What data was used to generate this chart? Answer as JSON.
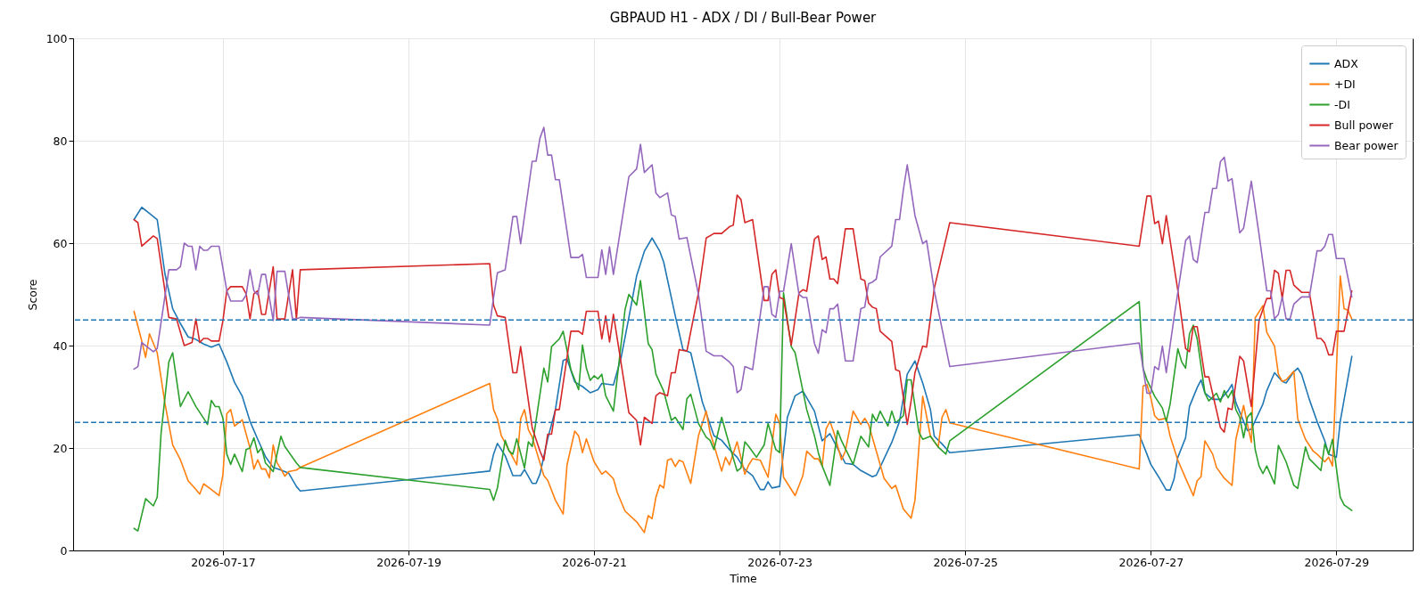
{
  "chart_data": {
    "type": "line",
    "title": "GBPAUD H1 - ADX / DI / Bull-Bear Power",
    "xlabel": "Time",
    "ylabel": "Score",
    "xlim": [
      "2026-07-15T09:15",
      "2026-07-29T19:45"
    ],
    "xticks": [
      "2026-07-17",
      "2026-07-19",
      "2026-07-21",
      "2026-07-23",
      "2026-07-25",
      "2026-07-27",
      "2026-07-29"
    ],
    "ylim": [
      0,
      100
    ],
    "yticks": [
      0,
      20,
      40,
      60,
      80,
      100
    ],
    "grid": true,
    "legend": "top right",
    "ref_lines": [
      {
        "axis": "y",
        "value": 45,
        "color": "#1f77b4",
        "line_style": "dashed"
      },
      {
        "axis": "y",
        "value": 25,
        "color": "#1f77b4",
        "line_style": "dashed"
      }
    ],
    "series": [
      {
        "name": "ADX",
        "color": "#1f77b4",
        "x": [
          "2026-07-16T01:00",
          "2026-07-16T03:00",
          "2026-07-16T05:00",
          "2026-07-16T07:00",
          "2026-07-16T09:00",
          "2026-07-16T11:00",
          "2026-07-16T13:00",
          "2026-07-16T15:00",
          "2026-07-16T17:00",
          "2026-07-16T19:00",
          "2026-07-16T21:00",
          "2026-07-16T23:00",
          "2026-07-17T01:00",
          "2026-07-17T03:00",
          "2026-07-17T05:00",
          "2026-07-17T07:00",
          "2026-07-17T09:00",
          "2026-07-17T11:00",
          "2026-07-17T13:00",
          "2026-07-17T15:00",
          "2026-07-17T17:00",
          "2026-07-17T19:00",
          "2026-07-17T20:00",
          "2026-07-19T21:00",
          "2026-07-19T22:00",
          "2026-07-19T23:00",
          "2026-07-20T01:00",
          "2026-07-20T03:00",
          "2026-07-20T05:00",
          "2026-07-20T06:00",
          "2026-07-20T08:00",
          "2026-07-20T09:00",
          "2026-07-20T10:00",
          "2026-07-20T12:00",
          "2026-07-20T14:00",
          "2026-07-20T16:00",
          "2026-07-20T17:00",
          "2026-07-20T19:00",
          "2026-07-20T21:00",
          "2026-07-20T23:00",
          "2026-07-21T01:00",
          "2026-07-21T02:00",
          "2026-07-21T05:00",
          "2026-07-21T07:00",
          "2026-07-21T09:00",
          "2026-07-21T11:00",
          "2026-07-21T13:00",
          "2026-07-21T15:00",
          "2026-07-21T17:00",
          "2026-07-21T18:00",
          "2026-07-21T21:00",
          "2026-07-21T23:00",
          "2026-07-22T01:00",
          "2026-07-22T04:00",
          "2026-07-22T07:00",
          "2026-07-22T09:00",
          "2026-07-22T11:00",
          "2026-07-22T13:00",
          "2026-07-22T15:00",
          "2026-07-22T17:00",
          "2026-07-22T19:00",
          "2026-07-22T20:00",
          "2026-07-22T21:00",
          "2026-07-22T22:00",
          "2026-07-23T00:00",
          "2026-07-23T02:00",
          "2026-07-23T04:00",
          "2026-07-23T06:00",
          "2026-07-23T09:00",
          "2026-07-23T11:00",
          "2026-07-23T13:00",
          "2026-07-23T15:00",
          "2026-07-23T17:00",
          "2026-07-23T19:00",
          "2026-07-23T21:00",
          "2026-07-24T00:00",
          "2026-07-24T01:00",
          "2026-07-24T03:00",
          "2026-07-24T05:00",
          "2026-07-24T07:00",
          "2026-07-24T09:00",
          "2026-07-24T11:00",
          "2026-07-24T13:00",
          "2026-07-24T15:00",
          "2026-07-24T16:00",
          "2026-07-24T18:00",
          "2026-07-24T20:00",
          "2026-07-26T21:00",
          "2026-07-26T23:00",
          "2026-07-27T00:00",
          "2026-07-27T02:00",
          "2026-07-27T04:00",
          "2026-07-27T05:00",
          "2026-07-27T06:00",
          "2026-07-27T07:00",
          "2026-07-27T09:00",
          "2026-07-27T10:00",
          "2026-07-27T12:00",
          "2026-07-27T13:00",
          "2026-07-27T14:00",
          "2026-07-27T16:00",
          "2026-07-27T18:00",
          "2026-07-27T20:00",
          "2026-07-27T21:00",
          "2026-07-27T22:00",
          "2026-07-28T00:00",
          "2026-07-28T01:00",
          "2026-07-28T02:00",
          "2026-07-28T05:00",
          "2026-07-28T06:00",
          "2026-07-28T08:00",
          "2026-07-28T10:00",
          "2026-07-28T11:00",
          "2026-07-28T13:00",
          "2026-07-28T14:00",
          "2026-07-28T15:00",
          "2026-07-28T17:00",
          "2026-07-28T19:00",
          "2026-07-28T21:00",
          "2026-07-28T22:00",
          "2026-07-29T00:00",
          "2026-07-29T01:00",
          "2026-07-29T04:00"
        ],
        "values": [
          64.6,
          67.0,
          65.8,
          64.6,
          54.0,
          47.2,
          44.3,
          41.7,
          41.2,
          40.3,
          39.7,
          40.3,
          36.8,
          32.8,
          30.1,
          25.2,
          21.7,
          18.3,
          16.2,
          15.7,
          15.1,
          12.5,
          11.6,
          15.5,
          18.8,
          20.9,
          18.5,
          14.6,
          14.6,
          15.8,
          13.1,
          13.1,
          14.9,
          21.8,
          27.5,
          37.1,
          37.4,
          32.9,
          32.0,
          30.8,
          31.4,
          32.6,
          32.3,
          37.7,
          45.5,
          53.6,
          58.4,
          61.0,
          58.4,
          56.3,
          45.8,
          39.2,
          38.6,
          29.0,
          22.4,
          21.5,
          19.7,
          18.2,
          15.8,
          14.6,
          11.9,
          11.9,
          13.4,
          12.2,
          12.5,
          26.0,
          30.2,
          31.1,
          27.2,
          21.4,
          22.8,
          19.9,
          17.0,
          16.8,
          15.6,
          14.4,
          14.7,
          17.9,
          21.1,
          25.2,
          34.4,
          37.0,
          32.7,
          27.5,
          22.3,
          20.8,
          19.1,
          22.6,
          18.8,
          16.8,
          14.4,
          11.8,
          11.8,
          13.9,
          18.2,
          22.0,
          28.1,
          31.8,
          33.3,
          30.7,
          29.5,
          29.5,
          31.2,
          32.4,
          28.9,
          25.2,
          23.4,
          23.7,
          28.6,
          31.2,
          34.7,
          33.0,
          32.7,
          34.9,
          35.6,
          34.4,
          29.5,
          25.2,
          21.4,
          18.8,
          18.2,
          25.2,
          37.9
        ]
      },
      {
        "name": "+DI",
        "color": "#ff7f0e",
        "x": [
          "2026-07-16T01:00",
          "2026-07-16T03:00",
          "2026-07-16T04:00",
          "2026-07-16T05:00",
          "2026-07-16T07:00",
          "2026-07-16T09:00",
          "2026-07-16T11:00",
          "2026-07-16T13:00",
          "2026-07-16T15:00",
          "2026-07-16T17:00",
          "2026-07-16T18:00",
          "2026-07-16T19:00",
          "2026-07-16T21:00",
          "2026-07-16T23:00",
          "2026-07-17T00:00",
          "2026-07-17T01:00",
          "2026-07-17T02:00",
          "2026-07-17T03:00",
          "2026-07-17T05:00",
          "2026-07-17T07:00",
          "2026-07-17T08:00",
          "2026-07-17T09:00",
          "2026-07-17T10:00",
          "2026-07-17T11:00",
          "2026-07-17T12:00",
          "2026-07-17T13:00",
          "2026-07-17T14:00",
          "2026-07-17T15:00",
          "2026-07-17T16:00",
          "2026-07-17T17:00",
          "2026-07-17T19:00",
          "2026-07-17T20:00",
          "2026-07-19T21:00",
          "2026-07-19T22:00",
          "2026-07-19T23:00",
          "2026-07-20T00:00",
          "2026-07-20T04:00",
          "2026-07-20T05:00",
          "2026-07-20T06:00",
          "2026-07-20T07:00",
          "2026-07-20T08:00",
          "2026-07-20T11:00",
          "2026-07-20T12:00",
          "2026-07-20T14:00",
          "2026-07-20T16:00",
          "2026-07-20T17:00",
          "2026-07-20T19:00",
          "2026-07-20T20:00",
          "2026-07-20T21:00",
          "2026-07-20T22:00",
          "2026-07-21T00:00",
          "2026-07-21T02:00",
          "2026-07-21T03:00",
          "2026-07-21T05:00",
          "2026-07-21T06:00",
          "2026-07-21T08:00",
          "2026-07-21T11:00",
          "2026-07-21T13:00",
          "2026-07-21T14:00",
          "2026-07-21T15:00",
          "2026-07-21T16:00",
          "2026-07-21T17:00",
          "2026-07-21T18:00",
          "2026-07-21T19:00",
          "2026-07-21T20:00",
          "2026-07-21T21:00",
          "2026-07-21T22:00",
          "2026-07-21T23:00",
          "2026-07-22T01:00",
          "2026-07-22T03:00",
          "2026-07-22T05:00",
          "2026-07-22T06:00",
          "2026-07-22T07:00",
          "2026-07-22T09:00",
          "2026-07-22T10:00",
          "2026-07-22T11:00",
          "2026-07-22T13:00",
          "2026-07-22T15:00",
          "2026-07-22T16:00",
          "2026-07-22T17:00",
          "2026-07-22T19:00",
          "2026-07-22T21:00",
          "2026-07-22T23:00",
          "2026-07-23T00:00",
          "2026-07-23T01:00",
          "2026-07-23T04:00",
          "2026-07-23T06:00",
          "2026-07-23T07:00",
          "2026-07-23T09:00",
          "2026-07-23T10:00",
          "2026-07-23T11:00",
          "2026-07-23T12:00",
          "2026-07-23T13:00",
          "2026-07-23T14:00",
          "2026-07-23T16:00",
          "2026-07-23T17:00",
          "2026-07-23T19:00",
          "2026-07-23T21:00",
          "2026-07-23T22:00",
          "2026-07-23T23:00",
          "2026-07-24T01:00",
          "2026-07-24T03:00",
          "2026-07-24T05:00",
          "2026-07-24T06:00",
          "2026-07-24T08:00",
          "2026-07-24T10:00",
          "2026-07-24T11:00",
          "2026-07-24T13:00",
          "2026-07-24T15:00",
          "2026-07-24T17:00",
          "2026-07-24T18:00",
          "2026-07-24T19:00",
          "2026-07-24T20:00",
          "2026-07-26T21:00",
          "2026-07-26T22:00",
          "2026-07-26T23:00",
          "2026-07-27T00:00",
          "2026-07-27T01:00",
          "2026-07-27T02:00",
          "2026-07-27T04:00",
          "2026-07-27T05:00",
          "2026-07-27T07:00",
          "2026-07-27T09:00",
          "2026-07-27T11:00",
          "2026-07-27T12:00",
          "2026-07-27T13:00",
          "2026-07-27T14:00",
          "2026-07-27T16:00",
          "2026-07-27T17:00",
          "2026-07-27T19:00",
          "2026-07-27T21:00",
          "2026-07-27T22:00",
          "2026-07-28T00:00",
          "2026-07-28T01:00",
          "2026-07-28T02:00",
          "2026-07-28T03:00",
          "2026-07-28T05:00",
          "2026-07-28T06:00",
          "2026-07-28T08:00",
          "2026-07-28T09:00",
          "2026-07-28T10:00",
          "2026-07-28T11:00",
          "2026-07-28T13:00",
          "2026-07-28T14:00",
          "2026-07-28T16:00",
          "2026-07-28T18:00",
          "2026-07-28T19:00",
          "2026-07-28T21:00",
          "2026-07-28T22:00",
          "2026-07-28T23:00",
          "2026-07-29T01:00",
          "2026-07-29T02:00",
          "2026-07-29T03:00",
          "2026-07-29T04:00"
        ],
        "values": [
          46.7,
          40.9,
          37.7,
          42.3,
          38.6,
          28.7,
          20.6,
          17.7,
          13.6,
          11.9,
          11.0,
          13.0,
          11.9,
          10.7,
          14.8,
          26.7,
          27.5,
          24.3,
          25.5,
          20.0,
          15.9,
          17.7,
          15.9,
          15.9,
          14.2,
          20.6,
          17.1,
          15.9,
          14.5,
          15.4,
          15.7,
          16.2,
          32.6,
          27.5,
          25.7,
          22.4,
          16.7,
          25.7,
          27.5,
          23.6,
          22.1,
          14.6,
          13.7,
          9.8,
          7.1,
          16.7,
          23.3,
          22.4,
          19.1,
          21.8,
          17.3,
          14.9,
          15.5,
          14.0,
          11.3,
          7.7,
          5.6,
          3.5,
          6.8,
          6.2,
          10.4,
          12.8,
          12.2,
          17.6,
          17.9,
          16.4,
          17.6,
          17.3,
          13.1,
          22.4,
          27.2,
          23.0,
          20.6,
          15.5,
          18.2,
          16.7,
          21.2,
          14.9,
          16.7,
          17.9,
          17.6,
          14.3,
          26.6,
          24.8,
          14.3,
          10.7,
          14.6,
          19.4,
          17.9,
          17.9,
          16.5,
          23.7,
          25.2,
          23.1,
          17.7,
          19.4,
          27.2,
          24.6,
          25.8,
          24.6,
          19.4,
          14.1,
          12.1,
          12.7,
          8.1,
          6.3,
          9.8,
          30.1,
          22.3,
          20.2,
          26.0,
          27.5,
          24.9,
          15.9,
          32.1,
          32.4,
          29.8,
          26.3,
          25.5,
          25.8,
          22.3,
          17.6,
          14.1,
          10.7,
          13.6,
          14.4,
          21.4,
          18.8,
          16.2,
          14.1,
          12.7,
          21.7,
          28.3,
          24.6,
          21.1,
          45.4,
          47.8,
          42.6,
          39.9,
          34.4,
          33.0,
          33.3,
          35.0,
          25.7,
          21.7,
          19.4,
          18.8,
          17.3,
          18.2,
          16.5,
          53.6,
          47.2,
          46.9,
          45.2
        ]
      },
      {
        "name": "-DI",
        "color": "#2ca02c",
        "x": [
          "2026-07-16T01:00",
          "2026-07-16T02:00",
          "2026-07-16T04:00",
          "2026-07-16T06:00",
          "2026-07-16T07:00",
          "2026-07-16T08:00",
          "2026-07-16T10:00",
          "2026-07-16T11:00",
          "2026-07-16T13:00",
          "2026-07-16T15:00",
          "2026-07-16T17:00",
          "2026-07-16T19:00",
          "2026-07-16T20:00",
          "2026-07-16T21:00",
          "2026-07-16T22:00",
          "2026-07-16T23:00",
          "2026-07-17T00:00",
          "2026-07-17T01:00",
          "2026-07-17T02:00",
          "2026-07-17T03:00",
          "2026-07-17T05:00",
          "2026-07-17T06:00",
          "2026-07-17T07:00",
          "2026-07-17T08:00",
          "2026-07-17T09:00",
          "2026-07-17T10:00",
          "2026-07-17T11:00",
          "2026-07-17T13:00",
          "2026-07-17T15:00",
          "2026-07-17T16:00",
          "2026-07-17T19:00",
          "2026-07-17T20:00",
          "2026-07-19T21:00",
          "2026-07-19T22:00",
          "2026-07-19T23:00",
          "2026-07-20T01:00",
          "2026-07-20T02:00",
          "2026-07-20T03:00",
          "2026-07-20T04:00",
          "2026-07-20T06:00",
          "2026-07-20T07:00",
          "2026-07-20T08:00",
          "2026-07-20T11:00",
          "2026-07-20T12:00",
          "2026-07-20T13:00",
          "2026-07-20T15:00",
          "2026-07-20T16:00",
          "2026-07-20T18:00",
          "2026-07-20T20:00",
          "2026-07-20T21:00",
          "2026-07-20T22:00",
          "2026-07-20T23:00",
          "2026-07-21T00:00",
          "2026-07-21T01:00",
          "2026-07-21T02:00",
          "2026-07-21T03:00",
          "2026-07-21T05:00",
          "2026-07-21T08:00",
          "2026-07-21T09:00",
          "2026-07-21T11:00",
          "2026-07-21T12:00",
          "2026-07-21T14:00",
          "2026-07-21T15:00",
          "2026-07-21T16:00",
          "2026-07-21T18:00",
          "2026-07-21T20:00",
          "2026-07-21T21:00",
          "2026-07-21T23:00",
          "2026-07-22T00:00",
          "2026-07-22T01:00",
          "2026-07-22T03:00",
          "2026-07-22T05:00",
          "2026-07-22T06:00",
          "2026-07-22T07:00",
          "2026-07-22T09:00",
          "2026-07-22T11:00",
          "2026-07-22T13:00",
          "2026-07-22T14:00",
          "2026-07-22T15:00",
          "2026-07-22T16:00",
          "2026-07-22T18:00",
          "2026-07-22T20:00",
          "2026-07-22T21:00",
          "2026-07-22T23:00",
          "2026-07-23T00:00",
          "2026-07-23T01:00",
          "2026-07-23T03:00",
          "2026-07-23T04:00",
          "2026-07-23T07:00",
          "2026-07-23T09:00",
          "2026-07-23T10:00",
          "2026-07-23T11:00",
          "2026-07-23T13:00",
          "2026-07-23T15:00",
          "2026-07-23T16:00",
          "2026-07-23T19:00",
          "2026-07-23T21:00",
          "2026-07-23T23:00",
          "2026-07-24T00:00",
          "2026-07-24T01:00",
          "2026-07-24T02:00",
          "2026-07-24T04:00",
          "2026-07-24T05:00",
          "2026-07-24T06:00",
          "2026-07-24T08:00",
          "2026-07-24T09:00",
          "2026-07-24T10:00",
          "2026-07-24T12:00",
          "2026-07-24T13:00",
          "2026-07-24T15:00",
          "2026-07-24T17:00",
          "2026-07-24T19:00",
          "2026-07-24T20:00",
          "2026-07-26T21:00",
          "2026-07-26T22:00",
          "2026-07-26T23:00",
          "2026-07-27T01:00",
          "2026-07-27T03:00",
          "2026-07-27T04:00",
          "2026-07-27T05:00",
          "2026-07-27T07:00",
          "2026-07-27T08:00",
          "2026-07-27T09:00",
          "2026-07-27T10:00",
          "2026-07-27T11:00",
          "2026-07-27T12:00",
          "2026-07-27T14:00",
          "2026-07-27T15:00",
          "2026-07-27T17:00",
          "2026-07-27T18:00",
          "2026-07-27T19:00",
          "2026-07-27T20:00",
          "2026-07-27T21:00",
          "2026-07-27T22:00",
          "2026-07-27T23:00",
          "2026-07-28T00:00",
          "2026-07-28T01:00",
          "2026-07-28T02:00",
          "2026-07-28T03:00",
          "2026-07-28T04:00",
          "2026-07-28T05:00",
          "2026-07-28T06:00",
          "2026-07-28T08:00",
          "2026-07-28T09:00",
          "2026-07-28T11:00",
          "2026-07-28T13:00",
          "2026-07-28T14:00",
          "2026-07-28T16:00",
          "2026-07-28T17:00",
          "2026-07-28T20:00",
          "2026-07-28T21:00",
          "2026-07-28T22:00",
          "2026-07-28T23:00",
          "2026-07-29T01:00",
          "2026-07-29T02:00",
          "2026-07-29T04:00"
        ],
        "values": [
          4.3,
          3.8,
          10.1,
          8.7,
          10.4,
          22.9,
          36.8,
          38.6,
          28.1,
          31.0,
          28.1,
          25.8,
          24.6,
          29.3,
          28.1,
          28.1,
          25.8,
          18.8,
          16.8,
          18.8,
          15.4,
          19.7,
          20.0,
          22.0,
          19.1,
          20.0,
          17.1,
          15.4,
          22.3,
          20.3,
          17.1,
          16.2,
          11.9,
          9.8,
          12.2,
          21.5,
          19.4,
          18.8,
          21.8,
          16.1,
          21.2,
          20.3,
          35.6,
          32.9,
          39.8,
          41.3,
          42.8,
          35.3,
          31.4,
          40.1,
          35.6,
          33.2,
          34.1,
          33.5,
          34.4,
          30.2,
          27.2,
          47.0,
          50.0,
          47.9,
          52.7,
          40.4,
          39.2,
          34.4,
          31.1,
          25.4,
          26.0,
          23.6,
          29.6,
          30.5,
          24.8,
          22.1,
          21.5,
          19.7,
          26.0,
          20.6,
          15.5,
          16.1,
          21.2,
          20.3,
          18.2,
          20.6,
          24.8,
          19.7,
          19.1,
          50.3,
          39.8,
          38.6,
          27.5,
          22.4,
          19.1,
          16.5,
          12.7,
          23.4,
          21.4,
          16.8,
          22.3,
          20.2,
          26.6,
          25.2,
          27.2,
          24.3,
          27.2,
          24.9,
          26.3,
          33.3,
          33.3,
          23.1,
          21.7,
          22.3,
          20.2,
          18.8,
          21.4,
          48.6,
          35.6,
          33.3,
          30.1,
          27.8,
          25.2,
          28.6,
          39.4,
          36.8,
          35.6,
          42.3,
          44.0,
          41.3,
          30.7,
          29.2,
          30.7,
          29.0,
          31.2,
          29.8,
          31.2,
          27.5,
          26.0,
          22.0,
          26.0,
          26.9,
          19.7,
          16.5,
          15.0,
          16.5,
          13.0,
          20.5,
          17.3,
          12.7,
          12.1,
          20.2,
          17.9,
          15.6,
          20.8,
          18.8,
          21.7,
          10.4,
          8.9,
          7.8
        ]
      },
      {
        "name": "Bull power",
        "color": "#d62728",
        "x": [
          "2026-07-16T01:00",
          "2026-07-16T02:00",
          "2026-07-16T03:00",
          "2026-07-16T06:00",
          "2026-07-16T07:00",
          "2026-07-16T10:00",
          "2026-07-16T12:00",
          "2026-07-16T14:00",
          "2026-07-16T16:00",
          "2026-07-16T17:00",
          "2026-07-16T18:00",
          "2026-07-16T19:00",
          "2026-07-16T20:00",
          "2026-07-16T21:00",
          "2026-07-16T23:00",
          "2026-07-17T00:00",
          "2026-07-17T01:00",
          "2026-07-17T02:00",
          "2026-07-17T05:00",
          "2026-07-17T06:00",
          "2026-07-17T07:00",
          "2026-07-17T08:00",
          "2026-07-17T09:00",
          "2026-07-17T10:00",
          "2026-07-17T11:00",
          "2026-07-17T13:00",
          "2026-07-17T14:00",
          "2026-07-17T16:00",
          "2026-07-17T18:00",
          "2026-07-17T19:00",
          "2026-07-17T20:00",
          "2026-07-19T21:00",
          "2026-07-19T22:00",
          "2026-07-19T23:00",
          "2026-07-20T01:00",
          "2026-07-20T03:00",
          "2026-07-20T04:00",
          "2026-07-20T05:00",
          "2026-07-20T08:00",
          "2026-07-20T10:00",
          "2026-07-20T11:00",
          "2026-07-20T12:00",
          "2026-07-20T13:00",
          "2026-07-20T14:00",
          "2026-07-20T15:00",
          "2026-07-20T18:00",
          "2026-07-20T20:00",
          "2026-07-20T21:00",
          "2026-07-20T22:00",
          "2026-07-21T01:00",
          "2026-07-21T02:00",
          "2026-07-21T03:00",
          "2026-07-21T04:00",
          "2026-07-21T05:00",
          "2026-07-21T09:00",
          "2026-07-21T11:00",
          "2026-07-21T12:00",
          "2026-07-21T13:00",
          "2026-07-21T15:00",
          "2026-07-21T16:00",
          "2026-07-21T17:00",
          "2026-07-21T19:00",
          "2026-07-21T20:00",
          "2026-07-21T21:00",
          "2026-07-21T22:00",
          "2026-07-22T00:00",
          "2026-07-22T03:00",
          "2026-07-22T05:00",
          "2026-07-22T07:00",
          "2026-07-22T09:00",
          "2026-07-22T11:00",
          "2026-07-22T12:00",
          "2026-07-22T13:00",
          "2026-07-22T14:00",
          "2026-07-22T15:00",
          "2026-07-22T17:00",
          "2026-07-22T20:00",
          "2026-07-22T21:00",
          "2026-07-22T22:00",
          "2026-07-22T23:00",
          "2026-07-23T00:00",
          "2026-07-23T01:00",
          "2026-07-23T03:00",
          "2026-07-23T05:00",
          "2026-07-23T06:00",
          "2026-07-23T07:00",
          "2026-07-23T09:00",
          "2026-07-23T10:00",
          "2026-07-23T11:00",
          "2026-07-23T12:00",
          "2026-07-23T13:00",
          "2026-07-23T14:00",
          "2026-07-23T15:00",
          "2026-07-23T17:00",
          "2026-07-23T19:00",
          "2026-07-23T21:00",
          "2026-07-23T22:00",
          "2026-07-23T23:00",
          "2026-07-24T00:00",
          "2026-07-24T01:00",
          "2026-07-24T02:00",
          "2026-07-24T05:00",
          "2026-07-24T06:00",
          "2026-07-24T07:00",
          "2026-07-24T08:00",
          "2026-07-24T09:00",
          "2026-07-24T10:00",
          "2026-07-24T11:00",
          "2026-07-24T13:00",
          "2026-07-24T14:00",
          "2026-07-24T16:00",
          "2026-07-24T20:00",
          "2026-07-26T21:00",
          "2026-07-26T23:00",
          "2026-07-27T00:00",
          "2026-07-27T01:00",
          "2026-07-27T02:00",
          "2026-07-27T03:00",
          "2026-07-27T04:00",
          "2026-07-27T07:00",
          "2026-07-27T09:00",
          "2026-07-27T10:00",
          "2026-07-27T11:00",
          "2026-07-27T12:00",
          "2026-07-27T14:00",
          "2026-07-27T15:00",
          "2026-07-27T18:00",
          "2026-07-27T19:00",
          "2026-07-27T20:00",
          "2026-07-27T21:00",
          "2026-07-27T23:00",
          "2026-07-28T00:00",
          "2026-07-28T02:00",
          "2026-07-28T04:00",
          "2026-07-28T06:00",
          "2026-07-28T07:00",
          "2026-07-28T08:00",
          "2026-07-28T09:00",
          "2026-07-28T10:00",
          "2026-07-28T11:00",
          "2026-07-28T12:00",
          "2026-07-28T13:00",
          "2026-07-28T15:00",
          "2026-07-28T17:00",
          "2026-07-28T19:00",
          "2026-07-28T20:00",
          "2026-07-28T21:00",
          "2026-07-28T22:00",
          "2026-07-28T23:00",
          "2026-07-29T00:00",
          "2026-07-29T02:00",
          "2026-07-29T04:00"
        ],
        "values": [
          64.6,
          64.0,
          59.4,
          61.4,
          60.9,
          45.5,
          45.2,
          40.0,
          40.6,
          45.2,
          40.6,
          41.4,
          41.4,
          40.9,
          40.9,
          44.9,
          50.7,
          51.5,
          51.5,
          50.1,
          45.2,
          50.1,
          50.7,
          46.1,
          46.1,
          55.4,
          45.2,
          45.2,
          54.8,
          45.2,
          54.8,
          56.0,
          47.9,
          45.8,
          45.5,
          34.7,
          34.7,
          39.8,
          23.9,
          19.4,
          17.6,
          22.7,
          22.7,
          27.5,
          27.5,
          42.8,
          42.8,
          42.2,
          46.7,
          46.7,
          41.3,
          45.8,
          40.7,
          46.1,
          26.9,
          25.4,
          20.6,
          26.0,
          24.8,
          30.2,
          30.8,
          30.2,
          34.7,
          34.7,
          39.2,
          38.9,
          50.3,
          61.0,
          61.9,
          61.9,
          63.2,
          63.5,
          69.4,
          68.5,
          64.0,
          64.6,
          48.8,
          48.8,
          53.9,
          54.8,
          49.4,
          49.1,
          40.1,
          50.3,
          50.9,
          50.6,
          60.8,
          61.4,
          56.8,
          57.3,
          53.0,
          53.0,
          52.1,
          62.8,
          62.8,
          53.0,
          52.7,
          48.3,
          47.5,
          47.2,
          42.8,
          40.8,
          35.3,
          35.0,
          29.8,
          24.6,
          29.2,
          34.7,
          39.9,
          39.7,
          51.2,
          64.0,
          59.4,
          69.2,
          69.2,
          63.8,
          64.3,
          59.9,
          65.4,
          50.7,
          39.4,
          38.8,
          43.7,
          43.7,
          33.9,
          33.9,
          24.0,
          23.1,
          27.8,
          27.5,
          37.9,
          37.0,
          28.1,
          44.9,
          49.2,
          49.2,
          54.7,
          54.1,
          49.2,
          54.7,
          54.7,
          51.8,
          50.4,
          50.4,
          41.4,
          41.4,
          40.5,
          38.2,
          38.2,
          42.8,
          42.8,
          50.7
        ]
      },
      {
        "name": "Bear power",
        "color": "#9467bd",
        "x": [
          "2026-07-16T01:00",
          "2026-07-16T02:00",
          "2026-07-16T03:00",
          "2026-07-16T06:00",
          "2026-07-16T07:00",
          "2026-07-16T10:00",
          "2026-07-16T12:00",
          "2026-07-16T13:00",
          "2026-07-16T14:00",
          "2026-07-16T15:00",
          "2026-07-16T16:00",
          "2026-07-16T17:00",
          "2026-07-16T18:00",
          "2026-07-16T19:00",
          "2026-07-16T20:00",
          "2026-07-16T21:00",
          "2026-07-16T23:00",
          "2026-07-17T01:00",
          "2026-07-17T02:00",
          "2026-07-17T05:00",
          "2026-07-17T06:00",
          "2026-07-17T07:00",
          "2026-07-17T08:00",
          "2026-07-17T09:00",
          "2026-07-17T10:00",
          "2026-07-17T11:00",
          "2026-07-17T13:00",
          "2026-07-17T14:00",
          "2026-07-17T16:00",
          "2026-07-17T18:00",
          "2026-07-17T19:00",
          "2026-07-17T20:00",
          "2026-07-19T21:00",
          "2026-07-19T22:00",
          "2026-07-19T23:00",
          "2026-07-20T01:00",
          "2026-07-20T03:00",
          "2026-07-20T04:00",
          "2026-07-20T05:00",
          "2026-07-20T08:00",
          "2026-07-20T09:00",
          "2026-07-20T10:00",
          "2026-07-20T11:00",
          "2026-07-20T12:00",
          "2026-07-20T13:00",
          "2026-07-20T14:00",
          "2026-07-20T15:00",
          "2026-07-20T18:00",
          "2026-07-20T20:00",
          "2026-07-20T21:00",
          "2026-07-20T22:00",
          "2026-07-21T01:00",
          "2026-07-21T02:00",
          "2026-07-21T03:00",
          "2026-07-21T04:00",
          "2026-07-21T05:00",
          "2026-07-21T09:00",
          "2026-07-21T11:00",
          "2026-07-21T12:00",
          "2026-07-21T13:00",
          "2026-07-21T15:00",
          "2026-07-21T16:00",
          "2026-07-21T17:00",
          "2026-07-21T19:00",
          "2026-07-21T20:00",
          "2026-07-21T21:00",
          "2026-07-21T22:00",
          "2026-07-22T00:00",
          "2026-07-22T03:00",
          "2026-07-22T05:00",
          "2026-07-22T07:00",
          "2026-07-22T09:00",
          "2026-07-22T11:00",
          "2026-07-22T12:00",
          "2026-07-22T13:00",
          "2026-07-22T14:00",
          "2026-07-22T15:00",
          "2026-07-22T17:00",
          "2026-07-22T20:00",
          "2026-07-22T21:00",
          "2026-07-22T22:00",
          "2026-07-22T23:00",
          "2026-07-23T00:00",
          "2026-07-23T01:00",
          "2026-07-23T03:00",
          "2026-07-23T05:00",
          "2026-07-23T06:00",
          "2026-07-23T07:00",
          "2026-07-23T09:00",
          "2026-07-23T10:00",
          "2026-07-23T11:00",
          "2026-07-23T12:00",
          "2026-07-23T13:00",
          "2026-07-23T14:00",
          "2026-07-23T15:00",
          "2026-07-23T17:00",
          "2026-07-23T19:00",
          "2026-07-23T21:00",
          "2026-07-23T22:00",
          "2026-07-23T23:00",
          "2026-07-24T00:00",
          "2026-07-24T01:00",
          "2026-07-24T02:00",
          "2026-07-24T05:00",
          "2026-07-24T06:00",
          "2026-07-24T07:00",
          "2026-07-24T08:00",
          "2026-07-24T09:00",
          "2026-07-24T10:00",
          "2026-07-24T11:00",
          "2026-07-24T13:00",
          "2026-07-24T14:00",
          "2026-07-24T16:00",
          "2026-07-24T20:00",
          "2026-07-26T21:00",
          "2026-07-26T23:00",
          "2026-07-27T00:00",
          "2026-07-27T01:00",
          "2026-07-27T02:00",
          "2026-07-27T03:00",
          "2026-07-27T04:00",
          "2026-07-27T06:00",
          "2026-07-27T09:00",
          "2026-07-27T10:00",
          "2026-07-27T11:00",
          "2026-07-27T12:00",
          "2026-07-27T14:00",
          "2026-07-27T15:00",
          "2026-07-27T16:00",
          "2026-07-27T17:00",
          "2026-07-27T18:00",
          "2026-07-27T19:00",
          "2026-07-27T20:00",
          "2026-07-27T21:00",
          "2026-07-27T23:00",
          "2026-07-28T00:00",
          "2026-07-28T02:00",
          "2026-07-28T04:00",
          "2026-07-28T06:00",
          "2026-07-28T07:00",
          "2026-07-28T08:00",
          "2026-07-28T09:00",
          "2026-07-28T10:00",
          "2026-07-28T11:00",
          "2026-07-28T12:00",
          "2026-07-28T13:00",
          "2026-07-28T15:00",
          "2026-07-28T17:00",
          "2026-07-28T19:00",
          "2026-07-28T20:00",
          "2026-07-28T21:00",
          "2026-07-28T22:00",
          "2026-07-28T23:00",
          "2026-07-29T00:00",
          "2026-07-29T02:00",
          "2026-07-29T04:00"
        ],
        "values": [
          35.4,
          35.9,
          40.6,
          38.8,
          39.4,
          54.8,
          54.8,
          55.4,
          60.0,
          59.4,
          59.4,
          54.8,
          59.4,
          58.6,
          58.6,
          59.4,
          59.4,
          50.7,
          48.7,
          48.7,
          49.9,
          54.8,
          50.7,
          49.9,
          53.9,
          53.9,
          44.9,
          54.5,
          54.5,
          45.2,
          45.2,
          45.5,
          44.0,
          49.4,
          54.2,
          54.8,
          65.2,
          65.2,
          59.9,
          76.0,
          76.0,
          80.5,
          82.6,
          77.2,
          77.2,
          72.4,
          72.4,
          57.2,
          57.2,
          57.8,
          53.3,
          53.3,
          58.7,
          53.9,
          59.3,
          53.9,
          73.0,
          74.5,
          79.3,
          73.8,
          75.3,
          69.8,
          68.9,
          69.8,
          65.5,
          65.2,
          60.8,
          61.1,
          50.0,
          38.9,
          38.0,
          38.0,
          36.8,
          35.9,
          30.8,
          31.4,
          35.9,
          35.3,
          51.5,
          51.5,
          46.1,
          45.5,
          50.6,
          50.6,
          59.9,
          50.0,
          49.4,
          49.4,
          40.4,
          38.5,
          43.1,
          42.5,
          47.2,
          47.2,
          48.1,
          37.0,
          37.0,
          47.2,
          47.5,
          52.1,
          52.4,
          53.0,
          57.3,
          59.4,
          64.6,
          64.6,
          70.4,
          75.3,
          70.4,
          65.4,
          59.9,
          60.5,
          50.7,
          35.9,
          40.5,
          30.7,
          30.7,
          35.9,
          35.3,
          39.9,
          34.7,
          45.4,
          60.5,
          61.4,
          56.8,
          56.2,
          66.0,
          66.0,
          70.7,
          70.7,
          75.9,
          76.8,
          72.1,
          72.6,
          62.0,
          62.9,
          72.1,
          61.7,
          50.7,
          50.7,
          45.2,
          46.1,
          49.5,
          45.2,
          45.2,
          48.1,
          49.5,
          49.5,
          58.5,
          58.5,
          59.4,
          61.7,
          61.7,
          57.0,
          57.0,
          49.5
        ]
      }
    ]
  }
}
